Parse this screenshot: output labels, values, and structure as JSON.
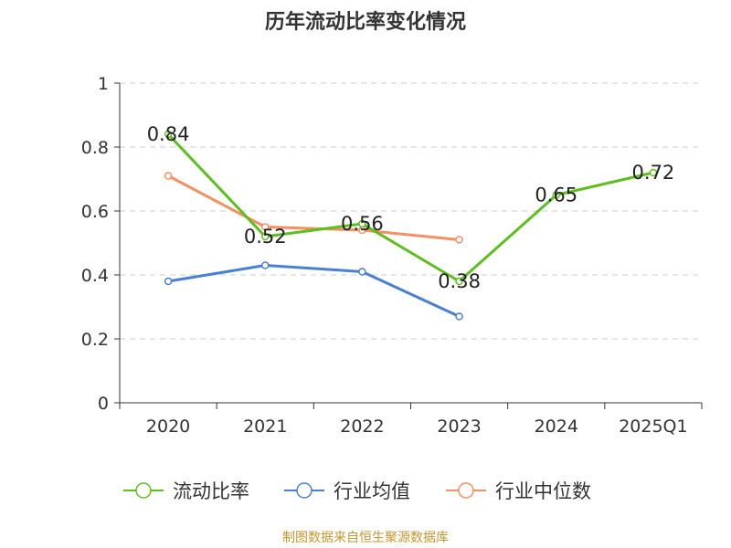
{
  "title": "历年流动比率变化情况",
  "source_note": "制图数据来自恒生聚源数据库",
  "chart_data": {
    "type": "line",
    "title": "历年流动比率变化情况",
    "xlabel": "",
    "ylabel": "",
    "categories": [
      "2020",
      "2021",
      "2022",
      "2023",
      "2024",
      "2025Q1"
    ],
    "ylim": [
      0,
      1
    ],
    "yticks": [
      0,
      0.2,
      0.4,
      0.6,
      0.8,
      1
    ],
    "ytick_labels": [
      "0",
      "0.2",
      "0.4",
      "0.6",
      "0.8",
      "1"
    ],
    "grid": true,
    "legend_position": "bottom",
    "series": [
      {
        "name": "流动比率",
        "color": "#5cbf1e",
        "values": [
          0.84,
          0.52,
          0.56,
          0.38,
          0.65,
          0.72
        ],
        "labels": [
          "0.84",
          "0.52",
          "0.56",
          "0.38",
          "0.65",
          "0.72"
        ]
      },
      {
        "name": "行业均值",
        "color": "#4a7fd6",
        "values": [
          0.38,
          0.43,
          0.41,
          0.27,
          null,
          null
        ]
      },
      {
        "name": "行业中位数",
        "color": "#f59062",
        "values": [
          0.71,
          0.55,
          0.54,
          0.51,
          null,
          null
        ]
      }
    ]
  }
}
